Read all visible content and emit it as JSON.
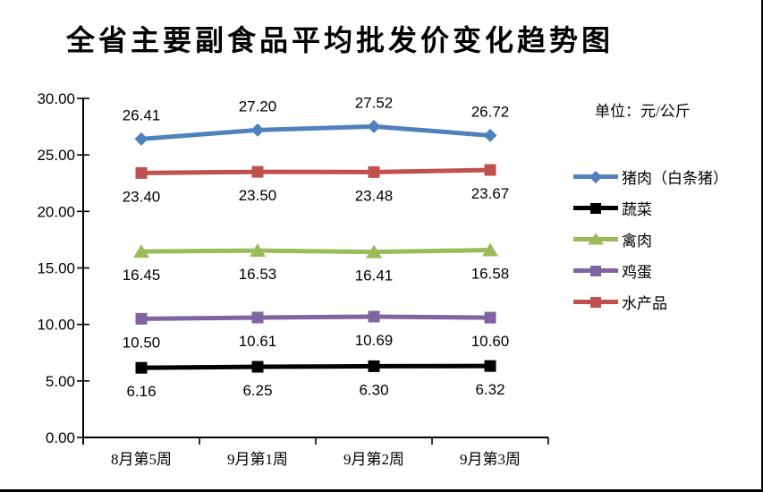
{
  "title": "全省主要副食品平均批发价变化趋势图",
  "unit_label": "单位：元/公斤",
  "chart_data": {
    "type": "line",
    "categories": [
      "8月第5周",
      "9月第1周",
      "9月第2周",
      "9月第3周"
    ],
    "series": [
      {
        "id": "pork",
        "name": "猪肉（白条猪）",
        "values": [
          26.41,
          27.2,
          27.52,
          26.72
        ],
        "color": "#4F81BD",
        "marker": "diamond",
        "label_position": "above"
      },
      {
        "id": "vegetables",
        "name": "蔬菜",
        "values": [
          6.16,
          6.25,
          6.3,
          6.32
        ],
        "color": "#000000",
        "marker": "square",
        "label_position": "below"
      },
      {
        "id": "poultry",
        "name": "禽肉",
        "values": [
          16.45,
          16.53,
          16.41,
          16.58
        ],
        "color": "#9BBB59",
        "marker": "triangle",
        "label_position": "below"
      },
      {
        "id": "eggs",
        "name": "鸡蛋",
        "values": [
          10.5,
          10.61,
          10.69,
          10.6
        ],
        "color": "#8064A2",
        "marker": "square",
        "label_position": "below"
      },
      {
        "id": "aquatic",
        "name": "水产品",
        "values": [
          23.4,
          23.5,
          23.48,
          23.67
        ],
        "color": "#C0504D",
        "marker": "square",
        "label_position": "below"
      }
    ],
    "y_axis": {
      "min": 0,
      "max": 30,
      "step": 5,
      "tick_labels": [
        "0.00",
        "5.00",
        "10.00",
        "15.00",
        "20.00",
        "25.00",
        "30.00"
      ]
    },
    "legend_position": "right",
    "grid": false,
    "value_decimals": 2,
    "axis_color": "#000000"
  }
}
